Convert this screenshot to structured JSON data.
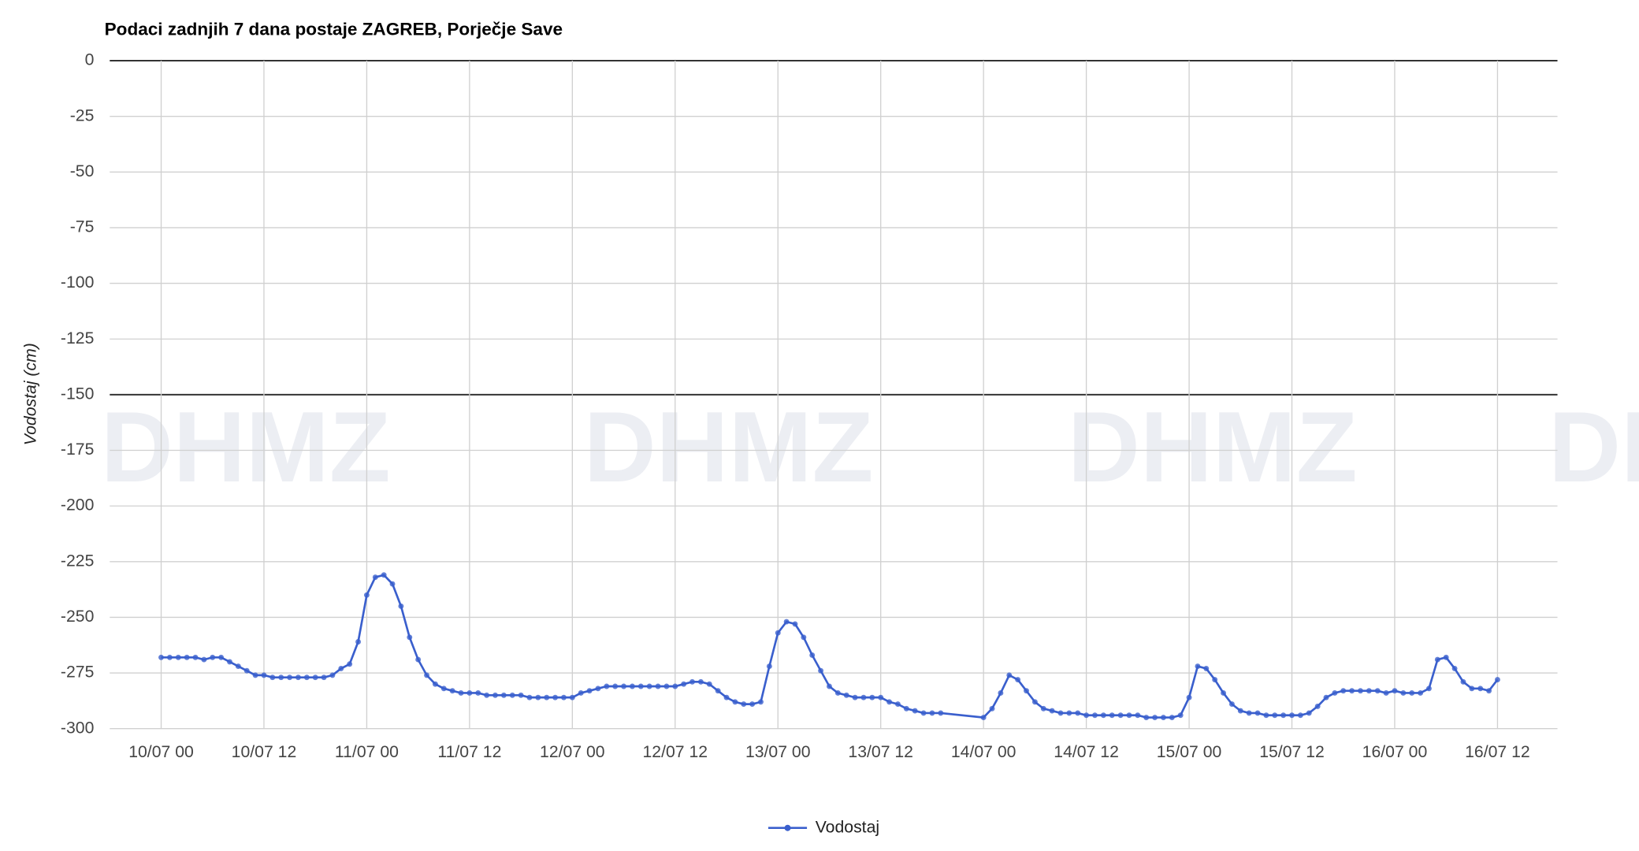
{
  "chart_data": {
    "type": "line",
    "title": "Podaci zadnjih 7 dana postaje ZAGREB, Porječje Save",
    "y_label": "Vodostaj (cm)",
    "watermark": "DHMZ",
    "x": [
      "10/07 00",
      "10/07 01",
      "10/07 02",
      "10/07 03",
      "10/07 04",
      "10/07 05",
      "10/07 06",
      "10/07 07",
      "10/07 08",
      "10/07 09",
      "10/07 10",
      "10/07 11",
      "10/07 12",
      "10/07 13",
      "10/07 14",
      "10/07 15",
      "10/07 16",
      "10/07 17",
      "10/07 18",
      "10/07 19",
      "10/07 20",
      "10/07 21",
      "10/07 22",
      "10/07 23",
      "11/07 00",
      "11/07 01",
      "11/07 02",
      "11/07 03",
      "11/07 04",
      "11/07 05",
      "11/07 06",
      "11/07 07",
      "11/07 08",
      "11/07 09",
      "11/07 10",
      "11/07 11",
      "11/07 12",
      "11/07 13",
      "11/07 14",
      "11/07 15",
      "11/07 16",
      "11/07 17",
      "11/07 18",
      "11/07 19",
      "11/07 20",
      "11/07 21",
      "11/07 22",
      "11/07 23",
      "12/07 00",
      "12/07 01",
      "12/07 02",
      "12/07 03",
      "12/07 04",
      "12/07 05",
      "12/07 06",
      "12/07 07",
      "12/07 08",
      "12/07 09",
      "12/07 10",
      "12/07 11",
      "12/07 12",
      "12/07 13",
      "12/07 14",
      "12/07 15",
      "12/07 16",
      "12/07 17",
      "12/07 18",
      "12/07 19",
      "12/07 20",
      "12/07 21",
      "12/07 22",
      "12/07 23",
      "13/07 00",
      "13/07 01",
      "13/07 02",
      "13/07 03",
      "13/07 04",
      "13/07 05",
      "13/07 06",
      "13/07 07",
      "13/07 08",
      "13/07 09",
      "13/07 10",
      "13/07 11",
      "13/07 12",
      "13/07 13",
      "13/07 14",
      "13/07 15",
      "13/07 16",
      "13/07 17",
      "13/07 18",
      "13/07 19",
      "14/07 00",
      "14/07 01",
      "14/07 02",
      "14/07 03",
      "14/07 04",
      "14/07 05",
      "14/07 06",
      "14/07 07",
      "14/07 08",
      "14/07 09",
      "14/07 10",
      "14/07 11",
      "14/07 12",
      "14/07 13",
      "14/07 14",
      "14/07 15",
      "14/07 16",
      "14/07 17",
      "14/07 18",
      "14/07 19",
      "14/07 20",
      "14/07 21",
      "14/07 22",
      "14/07 23",
      "15/07 00",
      "15/07 01",
      "15/07 02",
      "15/07 03",
      "15/07 04",
      "15/07 05",
      "15/07 06",
      "15/07 07",
      "15/07 08",
      "15/07 09",
      "15/07 10",
      "15/07 11",
      "15/07 12",
      "15/07 13",
      "15/07 14",
      "15/07 15",
      "15/07 16",
      "15/07 17",
      "15/07 18",
      "15/07 19",
      "15/07 20",
      "15/07 21",
      "15/07 22",
      "15/07 23",
      "16/07 00",
      "16/07 01",
      "16/07 02",
      "16/07 03",
      "16/07 04",
      "16/07 05",
      "16/07 06",
      "16/07 07",
      "16/07 08",
      "16/07 09",
      "16/07 10",
      "16/07 11",
      "16/07 12"
    ],
    "series": [
      {
        "name": "Vodostaj",
        "color": "#3a5fcd",
        "values": [
          -268,
          -268,
          -268,
          -268,
          -268,
          -269,
          -268,
          -268,
          -270,
          -272,
          -274,
          -276,
          -276,
          -277,
          -277,
          -277,
          -277,
          -277,
          -277,
          -277,
          -276,
          -273,
          -271,
          -261,
          -240,
          -232,
          -231,
          -235,
          -245,
          -259,
          -269,
          -276,
          -280,
          -282,
          -283,
          -284,
          -284,
          -284,
          -285,
          -285,
          -285,
          -285,
          -285,
          -286,
          -286,
          -286,
          -286,
          -286,
          -286,
          -284,
          -283,
          -282,
          -281,
          -281,
          -281,
          -281,
          -281,
          -281,
          -281,
          -281,
          -281,
          -280,
          -279,
          -279,
          -280,
          -283,
          -286,
          -288,
          -289,
          -289,
          -288,
          -272,
          -257,
          -252,
          -253,
          -259,
          -267,
          -274,
          -281,
          -284,
          -285,
          -286,
          -286,
          -286,
          -286,
          -288,
          -289,
          -291,
          -292,
          -293,
          -293,
          -293,
          -295,
          -291,
          -284,
          -276,
          -278,
          -283,
          -288,
          -291,
          -292,
          -293,
          -293,
          -293,
          -294,
          -294,
          -294,
          -294,
          -294,
          -294,
          -294,
          -295,
          -295,
          -295,
          -295,
          -294,
          -286,
          -272,
          -273,
          -278,
          -284,
          -289,
          -292,
          -293,
          -293,
          -294,
          -294,
          -294,
          -294,
          -294,
          -293,
          -290,
          -286,
          -284,
          -283,
          -283,
          -283,
          -283,
          -283,
          -284,
          -283,
          -284,
          -284,
          -284,
          -282,
          -269,
          -268,
          -273,
          -279,
          -282,
          -282,
          -283,
          -278
        ]
      }
    ],
    "xlim": [
      "09/07 18",
      "16/07 19"
    ],
    "xticks": [
      "10/07 00",
      "10/07 12",
      "11/07 00",
      "11/07 12",
      "12/07 00",
      "12/07 12",
      "13/07 00",
      "13/07 12",
      "14/07 00",
      "14/07 12",
      "15/07 00",
      "15/07 12",
      "16/07 00",
      "16/07 12"
    ],
    "ylim": [
      -300,
      0
    ],
    "yticks": [
      0,
      -25,
      -50,
      -75,
      -100,
      -125,
      -150,
      -175,
      -200,
      -225,
      -250,
      -275,
      -300
    ],
    "baseline": -150,
    "grid": true,
    "legend": "bottom"
  }
}
